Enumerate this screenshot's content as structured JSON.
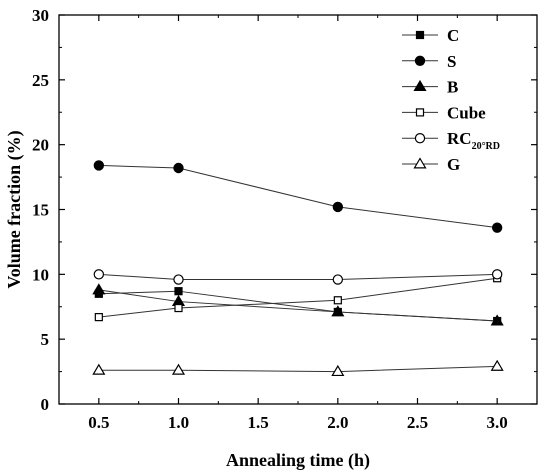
{
  "chart_data": {
    "type": "line",
    "title": "",
    "xlabel": "Annealing time (h)",
    "ylabel": "Volume fraction (%)",
    "x": [
      0.5,
      1.0,
      2.0,
      3.0
    ],
    "xlim": [
      0.25,
      3.25
    ],
    "ylim": [
      0,
      30
    ],
    "xticks": [
      0.5,
      1.0,
      1.5,
      2.0,
      2.5,
      3.0
    ],
    "xtick_labels": [
      "0.5",
      "1.0",
      "1.5",
      "2.0",
      "2.5",
      "3.0"
    ],
    "yticks": [
      0,
      5,
      10,
      15,
      20,
      25,
      30
    ],
    "ytick_labels": [
      "0",
      "5",
      "10",
      "15",
      "20",
      "25",
      "30"
    ],
    "grid": false,
    "legend_position": "top-right",
    "series": [
      {
        "name": "C",
        "name_sub": "",
        "marker": "square-filled",
        "values": [
          8.5,
          8.7,
          7.1,
          6.4
        ]
      },
      {
        "name": "S",
        "name_sub": "",
        "marker": "circle-filled",
        "values": [
          18.4,
          18.2,
          15.2,
          13.6
        ]
      },
      {
        "name": "B",
        "name_sub": "",
        "marker": "triangle-filled",
        "values": [
          8.8,
          7.9,
          7.1,
          6.4
        ]
      },
      {
        "name": "Cube",
        "name_sub": "",
        "marker": "square-open",
        "values": [
          6.7,
          7.4,
          8.0,
          9.7
        ]
      },
      {
        "name": "RC",
        "name_sub": "20°RD",
        "marker": "circle-open",
        "values": [
          10.0,
          9.6,
          9.6,
          10.0
        ]
      },
      {
        "name": "G",
        "name_sub": "",
        "marker": "triangle-open",
        "values": [
          2.6,
          2.6,
          2.5,
          2.9
        ]
      }
    ]
  }
}
